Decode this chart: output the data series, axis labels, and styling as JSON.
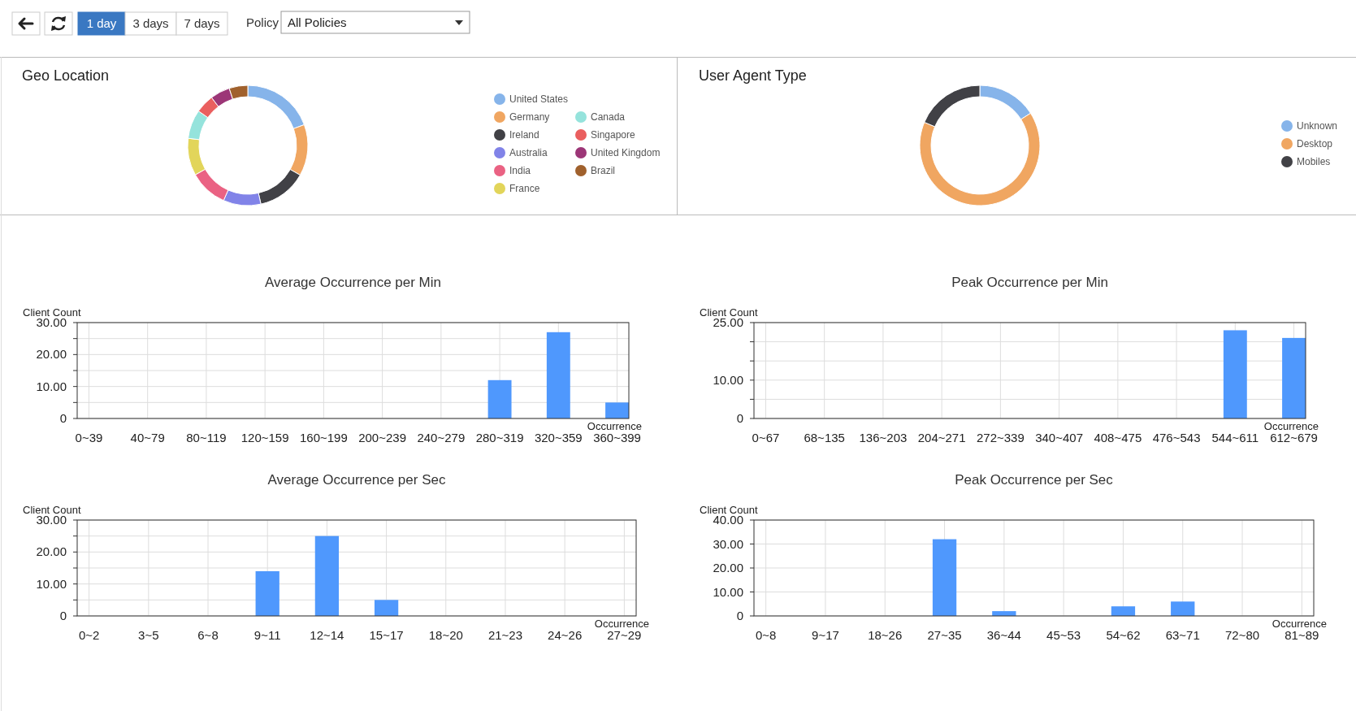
{
  "chart_data": [
    {
      "type": "other",
      "annotations": [
        "1 day",
        "3 days",
        "7 days",
        "Policy",
        "All Policies"
      ]
    },
    {
      "type": "donut",
      "title": "Geo Location",
      "legend": "right",
      "categories": [
        "United States",
        "Germany",
        "Ireland",
        "Australia",
        "India",
        "France",
        "Canada",
        "Singapore",
        "United Kingdom",
        "Brazil"
      ],
      "values": [
        19.4,
        13.8,
        13.3,
        10.1,
        10.3,
        10,
        7.8,
        5,
        5.3,
        5
      ],
      "colors": [
        "#86b4ea",
        "#f0a661",
        "#414146",
        "#8183e8",
        "#ea6283",
        "#e2d55a",
        "#95e3dc",
        "#ea5f5f",
        "#9c3677",
        "#a0612d"
      ]
    },
    {
      "type": "donut",
      "title": "User Agent Type",
      "legend": "right",
      "categories": [
        "Unknown",
        "Desktop",
        "Mobiles"
      ],
      "values": [
        16,
        65.3,
        18.7
      ],
      "colors": [
        "#86b4ea",
        "#f0a661",
        "#414146"
      ]
    },
    {
      "type": "bar",
      "title": "Average Occurrence per Min",
      "xlabel": "Occurrence",
      "ylabel": "Client Count",
      "grid": true,
      "categories": [
        "0~39",
        "40~79",
        "80~119",
        "120~159",
        "160~199",
        "200~239",
        "240~279",
        "280~319",
        "320~359",
        "360~399"
      ],
      "values": [
        0,
        0,
        0,
        0,
        0,
        0,
        0,
        12,
        27,
        5
      ],
      "color": "#4f98fd",
      "ylim": [
        0,
        30
      ],
      "yticks": [
        {
          "value": 0,
          "label": "0"
        },
        {
          "value": 5,
          "label": null
        },
        {
          "value": 10,
          "label": "10.00"
        },
        {
          "value": 15,
          "label": null
        },
        {
          "value": 20,
          "label": "20.00"
        },
        {
          "value": 25,
          "label": null
        },
        {
          "value": 30,
          "label": "30.00"
        }
      ]
    },
    {
      "type": "bar",
      "title": "Peak Occurrence per Min",
      "xlabel": "Occurrence",
      "ylabel": "Client Count",
      "grid": true,
      "categories": [
        "0~67",
        "68~135",
        "136~203",
        "204~271",
        "272~339",
        "340~407",
        "408~475",
        "476~543",
        "544~611",
        "612~679"
      ],
      "values": [
        0,
        0,
        0,
        0,
        0,
        0,
        0,
        0,
        23,
        21
      ],
      "color": "#4f98fd",
      "ylim": [
        0,
        25
      ],
      "yticks": [
        {
          "value": 0,
          "label": "0"
        },
        {
          "value": 5,
          "label": null
        },
        {
          "value": 10,
          "label": "10.00"
        },
        {
          "value": 15,
          "label": null
        },
        {
          "value": 20,
          "label": null
        },
        {
          "value": 25,
          "label": "25.00"
        }
      ]
    },
    {
      "type": "bar",
      "title": "Average Occurrence per Sec",
      "xlabel": "Occurrence",
      "ylabel": "Client Count",
      "grid": true,
      "categories": [
        "0~2",
        "3~5",
        "6~8",
        "9~11",
        "12~14",
        "15~17",
        "18~20",
        "21~23",
        "24~26",
        "27~29"
      ],
      "values": [
        0,
        0,
        0,
        14,
        25,
        5,
        0,
        0,
        0,
        0
      ],
      "color": "#4f98fd",
      "ylim": [
        0,
        30
      ],
      "yticks": [
        {
          "value": 0,
          "label": "0"
        },
        {
          "value": 5,
          "label": null
        },
        {
          "value": 10,
          "label": "10.00"
        },
        {
          "value": 15,
          "label": null
        },
        {
          "value": 20,
          "label": "20.00"
        },
        {
          "value": 25,
          "label": null
        },
        {
          "value": 30,
          "label": "30.00"
        }
      ]
    },
    {
      "type": "bar",
      "title": "Peak Occurrence per Sec",
      "xlabel": "Occurrence",
      "ylabel": "Client Count",
      "grid": true,
      "categories": [
        "0~8",
        "9~17",
        "18~26",
        "27~35",
        "36~44",
        "45~53",
        "54~62",
        "63~71",
        "72~80",
        "81~89"
      ],
      "values": [
        0,
        0,
        0,
        32,
        2,
        0,
        4,
        6,
        0,
        0
      ],
      "color": "#4f98fd",
      "ylim": [
        0,
        40
      ],
      "yticks": [
        {
          "value": 0,
          "label": "0"
        },
        {
          "value": 10,
          "label": "10.00"
        },
        {
          "value": 20,
          "label": "20.00"
        },
        {
          "value": 30,
          "label": "30.00"
        },
        {
          "value": 40,
          "label": "40.00"
        }
      ]
    }
  ]
}
